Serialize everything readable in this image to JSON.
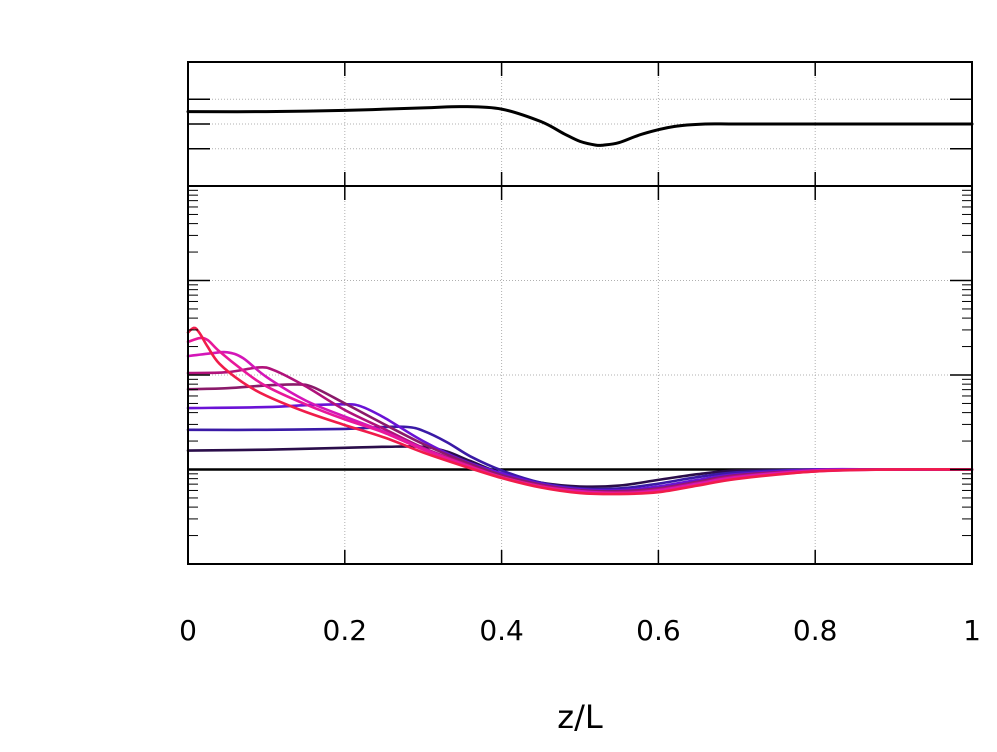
{
  "chart_data": [
    {
      "panel": "top",
      "type": "line",
      "title": "",
      "xlabel": "",
      "ylabel": "",
      "xlim": [
        0,
        1
      ],
      "ylim": [
        0,
        1
      ],
      "grid": true,
      "yticks": [
        0.3,
        0.5,
        0.7
      ],
      "series": [
        {
          "color": "#000000",
          "x": [
            0,
            0.1,
            0.2,
            0.3,
            0.35,
            0.4,
            0.45,
            0.48,
            0.5,
            0.52,
            0.53,
            0.55,
            0.58,
            0.62,
            0.66,
            0.7,
            0.8,
            0.9,
            1
          ],
          "y": [
            0.6,
            0.6,
            0.61,
            0.63,
            0.64,
            0.62,
            0.52,
            0.42,
            0.36,
            0.33,
            0.33,
            0.35,
            0.42,
            0.48,
            0.5,
            0.5,
            0.5,
            0.5,
            0.5
          ]
        }
      ]
    },
    {
      "panel": "bottom",
      "type": "line",
      "title": "",
      "xlabel": "z/L",
      "ylabel": "",
      "xlim": [
        0,
        1
      ],
      "ylim": [
        -1,
        3
      ],
      "yscale": "log-decades",
      "grid": true,
      "xticks": [
        0,
        0.2,
        0.4,
        0.6,
        0.8,
        1
      ],
      "xtick_labels": [
        "0",
        "0.2",
        "0.4",
        "0.6",
        "0.8",
        "1"
      ],
      "yticks": [
        -1,
        0,
        1,
        2,
        3
      ],
      "baseline": {
        "y": 0,
        "color": "#000000"
      },
      "series": [
        {
          "color": "#2a0d4a",
          "x": [
            0,
            0.1,
            0.2,
            0.25,
            0.3,
            0.33,
            0.36,
            0.4,
            0.45,
            0.5,
            0.55,
            0.6,
            0.65,
            0.7,
            0.8,
            0.9,
            1
          ],
          "y": [
            0.2,
            0.21,
            0.23,
            0.24,
            0.24,
            0.19,
            0.09,
            -0.04,
            -0.14,
            -0.18,
            -0.17,
            -0.11,
            -0.05,
            -0.01,
            0,
            0,
            0
          ]
        },
        {
          "color": "#3a1aa6",
          "x": [
            0,
            0.1,
            0.2,
            0.25,
            0.28,
            0.3,
            0.33,
            0.36,
            0.4,
            0.45,
            0.5,
            0.55,
            0.6,
            0.65,
            0.7,
            0.8,
            0.9,
            1
          ],
          "y": [
            0.42,
            0.42,
            0.43,
            0.45,
            0.45,
            0.41,
            0.29,
            0.14,
            -0.01,
            -0.14,
            -0.2,
            -0.2,
            -0.15,
            -0.08,
            -0.03,
            0,
            0,
            0
          ]
        },
        {
          "color": "#6a12d6",
          "x": [
            0,
            0.1,
            0.15,
            0.2,
            0.22,
            0.25,
            0.3,
            0.35,
            0.4,
            0.45,
            0.5,
            0.55,
            0.6,
            0.65,
            0.7,
            0.8,
            0.9,
            1
          ],
          "y": [
            0.65,
            0.66,
            0.68,
            0.69,
            0.67,
            0.55,
            0.3,
            0.1,
            -0.04,
            -0.15,
            -0.21,
            -0.22,
            -0.18,
            -0.11,
            -0.05,
            0,
            0,
            0
          ]
        },
        {
          "color": "#8a1a6a",
          "x": [
            0,
            0.05,
            0.1,
            0.14,
            0.16,
            0.2,
            0.25,
            0.3,
            0.35,
            0.4,
            0.45,
            0.5,
            0.55,
            0.6,
            0.65,
            0.7,
            0.8,
            0.9,
            1
          ],
          "y": [
            0.85,
            0.86,
            0.89,
            0.9,
            0.87,
            0.7,
            0.48,
            0.27,
            0.09,
            -0.06,
            -0.16,
            -0.22,
            -0.23,
            -0.2,
            -0.13,
            -0.06,
            -0.01,
            0,
            0
          ]
        },
        {
          "color": "#b0127a",
          "x": [
            0,
            0.05,
            0.09,
            0.11,
            0.15,
            0.2,
            0.25,
            0.3,
            0.35,
            0.4,
            0.45,
            0.5,
            0.55,
            0.6,
            0.65,
            0.7,
            0.8,
            0.9,
            1
          ],
          "y": [
            1.02,
            1.03,
            1.08,
            1.05,
            0.88,
            0.63,
            0.43,
            0.23,
            0.07,
            -0.08,
            -0.17,
            -0.23,
            -0.24,
            -0.21,
            -0.14,
            -0.07,
            -0.01,
            0,
            0
          ]
        },
        {
          "color": "#d416b8",
          "x": [
            0,
            0.03,
            0.05,
            0.07,
            0.1,
            0.15,
            0.2,
            0.25,
            0.3,
            0.35,
            0.4,
            0.45,
            0.5,
            0.55,
            0.6,
            0.65,
            0.7,
            0.8,
            0.9,
            1
          ],
          "y": [
            1.2,
            1.23,
            1.24,
            1.18,
            0.98,
            0.73,
            0.56,
            0.4,
            0.22,
            0.06,
            -0.08,
            -0.18,
            -0.23,
            -0.25,
            -0.22,
            -0.15,
            -0.08,
            -0.01,
            0,
            0
          ]
        },
        {
          "color": "#e8189a",
          "x": [
            0,
            0.015,
            0.025,
            0.04,
            0.07,
            0.1,
            0.15,
            0.2,
            0.25,
            0.3,
            0.35,
            0.4,
            0.45,
            0.5,
            0.55,
            0.6,
            0.65,
            0.7,
            0.8,
            0.9,
            1
          ],
          "y": [
            1.35,
            1.39,
            1.37,
            1.25,
            1.05,
            0.88,
            0.69,
            0.53,
            0.39,
            0.21,
            0.06,
            -0.08,
            -0.18,
            -0.24,
            -0.25,
            -0.23,
            -0.16,
            -0.09,
            -0.02,
            0,
            0
          ]
        },
        {
          "color": "#f01c4a",
          "x": [
            0,
            0.008,
            0.015,
            0.025,
            0.04,
            0.07,
            0.1,
            0.15,
            0.2,
            0.25,
            0.3,
            0.35,
            0.4,
            0.45,
            0.5,
            0.55,
            0.6,
            0.65,
            0.7,
            0.8,
            0.9,
            1
          ],
          "y": [
            1.45,
            1.5,
            1.44,
            1.3,
            1.12,
            0.92,
            0.78,
            0.61,
            0.47,
            0.34,
            0.18,
            0.04,
            -0.09,
            -0.19,
            -0.25,
            -0.26,
            -0.24,
            -0.17,
            -0.1,
            -0.02,
            0,
            0
          ]
        }
      ]
    }
  ]
}
